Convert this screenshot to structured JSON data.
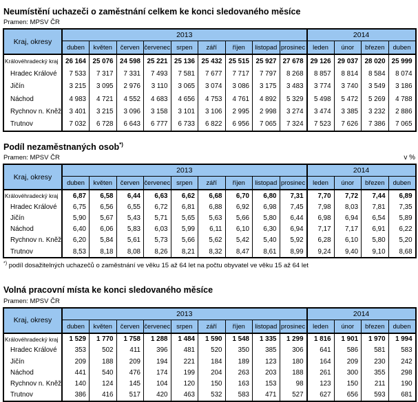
{
  "header_columns": {
    "corner": "Kraj, okresy",
    "years": [
      {
        "label": "2013",
        "span": 9
      },
      {
        "label": "2014",
        "span": 4
      }
    ],
    "months": [
      "duben",
      "květen",
      "červen",
      "červenec",
      "srpen",
      "září",
      "říjen",
      "listopad",
      "prosinec",
      "leden",
      "únor",
      "březen",
      "duben"
    ]
  },
  "header_bg_color": "#9ac6f0",
  "tables": [
    {
      "title": "Neumístění uchazeči o zaměstnání celkem ke konci sledovaného měsíce",
      "title_sup": "",
      "source": "Pramen: MPSV ČR",
      "unit": "",
      "rows": [
        {
          "label": "Královéhradecký kraj",
          "bold": true,
          "indent": false,
          "values": [
            "26 164",
            "25 076",
            "24 598",
            "25 221",
            "25 136",
            "25 432",
            "25 515",
            "25 927",
            "27 678",
            "29 126",
            "29 037",
            "28 020",
            "25 999"
          ]
        },
        {
          "label": "Hradec Králové",
          "bold": false,
          "indent": true,
          "values": [
            "7 533",
            "7 317",
            "7 331",
            "7 493",
            "7 581",
            "7 677",
            "7 717",
            "7 797",
            "8 268",
            "8 857",
            "8 814",
            "8 584",
            "8 074"
          ]
        },
        {
          "label": "Jičín",
          "bold": false,
          "indent": true,
          "values": [
            "3 215",
            "3 095",
            "2 976",
            "3 110",
            "3 065",
            "3 074",
            "3 086",
            "3 175",
            "3 483",
            "3 774",
            "3 740",
            "3 549",
            "3 186"
          ]
        },
        {
          "label": "Náchod",
          "bold": false,
          "indent": true,
          "values": [
            "4 983",
            "4 721",
            "4 552",
            "4 683",
            "4 656",
            "4 753",
            "4 761",
            "4 892",
            "5 329",
            "5 498",
            "5 472",
            "5 269",
            "4 788"
          ]
        },
        {
          "label": "Rychnov n. Kněž.",
          "bold": false,
          "indent": true,
          "values": [
            "3 401",
            "3 215",
            "3 096",
            "3 158",
            "3 101",
            "3 106",
            "2 995",
            "2 998",
            "3 274",
            "3 474",
            "3 385",
            "3 232",
            "2 886"
          ]
        },
        {
          "label": "Trutnov",
          "bold": false,
          "indent": true,
          "values": [
            "7 032",
            "6 728",
            "6 643",
            "6 777",
            "6 733",
            "6 822",
            "6 956",
            "7 065",
            "7 324",
            "7 523",
            "7 626",
            "7 386",
            "7 065"
          ]
        }
      ]
    },
    {
      "title": "Podíl nezaměstnaných osob",
      "title_sup": "*)",
      "source": "Pramen: MPSV ČR",
      "unit": "v %",
      "footnote_sup": "*)",
      "footnote_text": " podíl dosažitelných uchazečů o zaměstnání ve věku 15 až 64 let na počtu obyvatel ve věku 15 až 64 let",
      "rows": [
        {
          "label": "Královéhradecký kraj",
          "bold": true,
          "indent": false,
          "values": [
            "6,87",
            "6,58",
            "6,44",
            "6,63",
            "6,62",
            "6,68",
            "6,70",
            "6,80",
            "7,31",
            "7,70",
            "7,72",
            "7,44",
            "6,89"
          ]
        },
        {
          "label": "Hradec Králové",
          "bold": false,
          "indent": true,
          "values": [
            "6,75",
            "6,56",
            "6,55",
            "6,72",
            "6,81",
            "6,88",
            "6,92",
            "6,98",
            "7,45",
            "7,98",
            "8,03",
            "7,81",
            "7,35"
          ]
        },
        {
          "label": "Jičín",
          "bold": false,
          "indent": true,
          "values": [
            "5,90",
            "5,67",
            "5,43",
            "5,71",
            "5,65",
            "5,63",
            "5,66",
            "5,80",
            "6,44",
            "6,98",
            "6,94",
            "6,54",
            "5,89"
          ]
        },
        {
          "label": "Náchod",
          "bold": false,
          "indent": true,
          "values": [
            "6,40",
            "6,06",
            "5,83",
            "6,03",
            "5,99",
            "6,11",
            "6,10",
            "6,30",
            "6,94",
            "7,17",
            "7,17",
            "6,91",
            "6,22"
          ]
        },
        {
          "label": "Rychnov n. Kněž.",
          "bold": false,
          "indent": true,
          "values": [
            "6,20",
            "5,84",
            "5,61",
            "5,73",
            "5,66",
            "5,62",
            "5,42",
            "5,40",
            "5,92",
            "6,28",
            "6,10",
            "5,80",
            "5,20"
          ]
        },
        {
          "label": "Trutnov",
          "bold": false,
          "indent": true,
          "values": [
            "8,53",
            "8,18",
            "8,08",
            "8,26",
            "8,21",
            "8,32",
            "8,47",
            "8,61",
            "8,99",
            "9,24",
            "9,40",
            "9,10",
            "8,68"
          ]
        }
      ]
    },
    {
      "title": "Volná pracovní místa ke konci sledovaného měsíce",
      "title_sup": "",
      "source": "Pramen: MPSV ČR",
      "unit": "",
      "rows": [
        {
          "label": "Královéhradecký kraj",
          "bold": true,
          "indent": false,
          "values": [
            "1 529",
            "1 770",
            "1 758",
            "1 288",
            "1 484",
            "1 590",
            "1 548",
            "1 335",
            "1 299",
            "1 816",
            "1 901",
            "1 970",
            "1 994"
          ]
        },
        {
          "label": "Hradec Králové",
          "bold": false,
          "indent": true,
          "values": [
            "353",
            "502",
            "411",
            "396",
            "481",
            "520",
            "350",
            "385",
            "306",
            "641",
            "586",
            "581",
            "583"
          ]
        },
        {
          "label": "Jičín",
          "bold": false,
          "indent": true,
          "values": [
            "209",
            "188",
            "209",
            "194",
            "221",
            "184",
            "189",
            "123",
            "180",
            "164",
            "209",
            "230",
            "242"
          ]
        },
        {
          "label": "Náchod",
          "bold": false,
          "indent": true,
          "values": [
            "441",
            "540",
            "476",
            "174",
            "199",
            "204",
            "263",
            "203",
            "188",
            "261",
            "300",
            "355",
            "298"
          ]
        },
        {
          "label": "Rychnov n. Kněž.",
          "bold": false,
          "indent": true,
          "values": [
            "140",
            "124",
            "145",
            "104",
            "120",
            "150",
            "163",
            "153",
            "98",
            "123",
            "150",
            "211",
            "190"
          ]
        },
        {
          "label": "Trutnov",
          "bold": false,
          "indent": true,
          "values": [
            "386",
            "416",
            "517",
            "420",
            "463",
            "532",
            "583",
            "471",
            "527",
            "627",
            "656",
            "593",
            "681"
          ]
        }
      ]
    }
  ]
}
